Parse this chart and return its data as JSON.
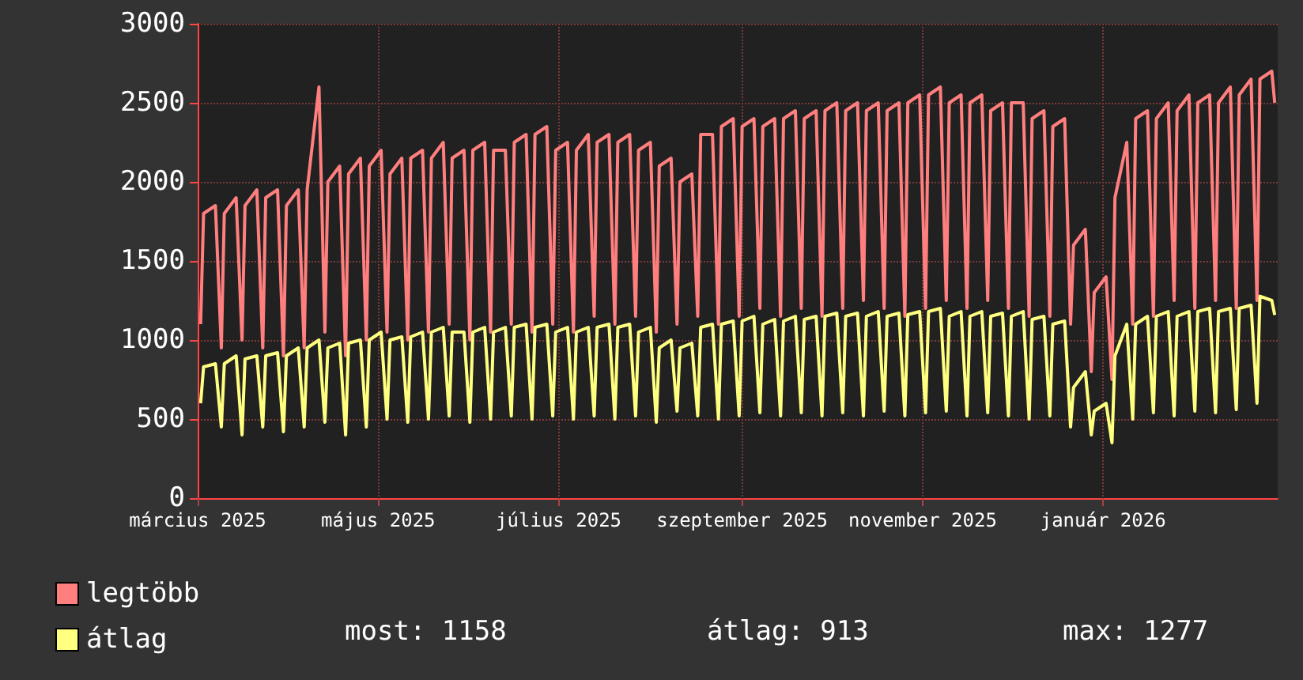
{
  "chart_data": {
    "type": "line",
    "x": [
      "2025-03-02",
      "2025-03-03",
      "2025-03-07",
      "2025-03-09",
      "2025-03-10",
      "2025-03-14",
      "2025-03-16",
      "2025-03-17",
      "2025-03-21",
      "2025-03-23",
      "2025-03-24",
      "2025-03-28",
      "2025-03-30",
      "2025-03-31",
      "2025-04-04",
      "2025-04-06",
      "2025-04-07",
      "2025-04-11",
      "2025-04-13",
      "2025-04-14",
      "2025-04-18",
      "2025-04-20",
      "2025-04-21",
      "2025-04-25",
      "2025-04-27",
      "2025-04-28",
      "2025-05-02",
      "2025-05-04",
      "2025-05-05",
      "2025-05-09",
      "2025-05-11",
      "2025-05-12",
      "2025-05-16",
      "2025-05-18",
      "2025-05-19",
      "2025-05-23",
      "2025-05-25",
      "2025-05-26",
      "2025-05-30",
      "2025-06-01",
      "2025-06-02",
      "2025-06-06",
      "2025-06-08",
      "2025-06-09",
      "2025-06-13",
      "2025-06-15",
      "2025-06-16",
      "2025-06-20",
      "2025-06-22",
      "2025-06-23",
      "2025-06-27",
      "2025-06-29",
      "2025-06-30",
      "2025-07-04",
      "2025-07-06",
      "2025-07-07",
      "2025-07-11",
      "2025-07-13",
      "2025-07-14",
      "2025-07-18",
      "2025-07-20",
      "2025-07-21",
      "2025-07-25",
      "2025-07-27",
      "2025-07-28",
      "2025-08-01",
      "2025-08-03",
      "2025-08-04",
      "2025-08-08",
      "2025-08-10",
      "2025-08-11",
      "2025-08-15",
      "2025-08-17",
      "2025-08-18",
      "2025-08-22",
      "2025-08-24",
      "2025-08-25",
      "2025-08-29",
      "2025-08-31",
      "2025-09-01",
      "2025-09-05",
      "2025-09-07",
      "2025-09-08",
      "2025-09-12",
      "2025-09-14",
      "2025-09-15",
      "2025-09-19",
      "2025-09-21",
      "2025-09-22",
      "2025-09-26",
      "2025-09-28",
      "2025-09-29",
      "2025-10-03",
      "2025-10-05",
      "2025-10-06",
      "2025-10-10",
      "2025-10-12",
      "2025-10-13",
      "2025-10-17",
      "2025-10-19",
      "2025-10-20",
      "2025-10-24",
      "2025-10-26",
      "2025-10-27",
      "2025-10-31",
      "2025-11-02",
      "2025-11-03",
      "2025-11-07",
      "2025-11-09",
      "2025-11-10",
      "2025-11-14",
      "2025-11-16",
      "2025-11-17",
      "2025-11-21",
      "2025-11-23",
      "2025-11-24",
      "2025-11-28",
      "2025-11-30",
      "2025-12-01",
      "2025-12-05",
      "2025-12-07",
      "2025-12-08",
      "2025-12-12",
      "2025-12-14",
      "2025-12-15",
      "2025-12-19",
      "2025-12-21",
      "2025-12-22",
      "2025-12-26",
      "2025-12-28",
      "2025-12-29",
      "2026-01-02",
      "2026-01-04",
      "2026-01-05",
      "2026-01-09",
      "2026-01-11",
      "2026-01-12",
      "2026-01-16",
      "2026-01-18",
      "2026-01-19",
      "2026-01-23",
      "2026-01-25",
      "2026-01-26",
      "2026-01-30",
      "2026-02-01",
      "2026-02-02",
      "2026-02-06",
      "2026-02-08",
      "2026-02-09",
      "2026-02-13",
      "2026-02-15",
      "2026-02-16",
      "2026-02-20",
      "2026-02-22",
      "2026-02-23",
      "2026-02-27",
      "2026-02-28"
    ],
    "series": [
      {
        "name": "legtöbb",
        "color": "#ff7f7f",
        "values": [
          1100,
          1800,
          1850,
          950,
          1800,
          1900,
          1000,
          1850,
          1950,
          950,
          1900,
          1950,
          900,
          1850,
          1950,
          950,
          1950,
          2600,
          1050,
          2000,
          2100,
          900,
          2050,
          2150,
          1000,
          2100,
          2200,
          1050,
          2050,
          2150,
          1000,
          2150,
          2200,
          1050,
          2150,
          2250,
          1100,
          2150,
          2200,
          1000,
          2200,
          2250,
          1050,
          2200,
          2200,
          1100,
          2250,
          2300,
          1050,
          2300,
          2350,
          1100,
          2200,
          2250,
          1050,
          2200,
          2300,
          1150,
          2250,
          2300,
          1100,
          2250,
          2300,
          1150,
          2200,
          2250,
          1050,
          2100,
          2150,
          1100,
          2000,
          2050,
          1150,
          2300,
          2300,
          1100,
          2350,
          2400,
          1150,
          2350,
          2400,
          1200,
          2350,
          2400,
          1150,
          2400,
          2450,
          1200,
          2400,
          2450,
          1150,
          2450,
          2500,
          1200,
          2450,
          2500,
          1250,
          2450,
          2500,
          1200,
          2450,
          2500,
          1150,
          2500,
          2550,
          1200,
          2550,
          2600,
          1250,
          2500,
          2550,
          1200,
          2500,
          2550,
          1250,
          2450,
          2500,
          1200,
          2500,
          2500,
          1150,
          2400,
          2450,
          1150,
          2350,
          2400,
          1100,
          1600,
          1700,
          800,
          1300,
          1400,
          750,
          1900,
          2250,
          1100,
          2400,
          2450,
          1150,
          2400,
          2500,
          1250,
          2450,
          2550,
          1200,
          2500,
          2550,
          1250,
          2500,
          2600,
          1200,
          2550,
          2650,
          1250,
          2650,
          2700,
          2500
        ]
      },
      {
        "name": "átlag",
        "color": "#ffff80",
        "values": [
          600,
          830,
          850,
          450,
          850,
          900,
          400,
          880,
          900,
          450,
          900,
          920,
          420,
          900,
          950,
          450,
          950,
          1000,
          480,
          950,
          980,
          400,
          980,
          1000,
          450,
          1000,
          1050,
          500,
          1000,
          1020,
          480,
          1020,
          1050,
          500,
          1050,
          1080,
          520,
          1050,
          1050,
          480,
          1050,
          1080,
          500,
          1050,
          1080,
          520,
          1080,
          1100,
          500,
          1080,
          1100,
          520,
          1050,
          1080,
          500,
          1050,
          1080,
          520,
          1080,
          1100,
          500,
          1080,
          1100,
          520,
          1050,
          1080,
          480,
          950,
          1000,
          550,
          950,
          980,
          520,
          1080,
          1100,
          500,
          1100,
          1120,
          520,
          1120,
          1150,
          540,
          1100,
          1130,
          520,
          1120,
          1150,
          540,
          1130,
          1150,
          520,
          1150,
          1170,
          540,
          1150,
          1170,
          520,
          1150,
          1180,
          550,
          1150,
          1170,
          520,
          1160,
          1180,
          540,
          1180,
          1200,
          550,
          1150,
          1180,
          520,
          1150,
          1180,
          540,
          1150,
          1170,
          520,
          1150,
          1180,
          500,
          1130,
          1150,
          520,
          1100,
          1120,
          450,
          700,
          800,
          400,
          550,
          600,
          350,
          900,
          1100,
          500,
          1100,
          1150,
          540,
          1150,
          1180,
          520,
          1150,
          1180,
          550,
          1180,
          1200,
          540,
          1180,
          1200,
          560,
          1200,
          1220,
          600,
          1277,
          1250,
          1158
        ]
      }
    ],
    "xlim": [
      "2025-03-01",
      "2026-03-01"
    ],
    "xticks": [
      {
        "value": "2025-03-01",
        "label": "március 2025"
      },
      {
        "value": "2025-05-01",
        "label": "május 2025"
      },
      {
        "value": "2025-07-01",
        "label": "július 2025"
      },
      {
        "value": "2025-09-01",
        "label": "szeptember 2025"
      },
      {
        "value": "2025-11-01",
        "label": "november 2025"
      },
      {
        "value": "2026-01-01",
        "label": "január 2026"
      }
    ],
    "ylim": [
      0,
      3000
    ],
    "yticks": [
      0,
      500,
      1000,
      1500,
      2000,
      2500,
      3000
    ],
    "grid": true,
    "legend": "bottom left",
    "marker": "none",
    "line_style": "solid",
    "annotations": [
      "most: 1158",
      "átlag: 913",
      "max: 1277"
    ]
  }
}
